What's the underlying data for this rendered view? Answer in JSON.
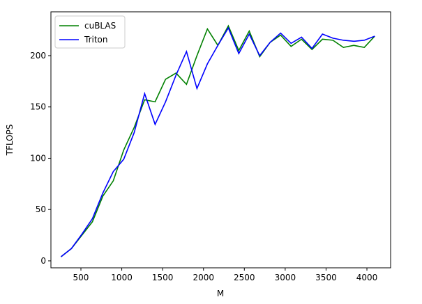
{
  "chart_data": {
    "type": "line",
    "x_label": "M",
    "y_label": "TFLOPS",
    "x": [
      256,
      384,
      512,
      640,
      768,
      896,
      1024,
      1152,
      1280,
      1408,
      1536,
      1664,
      1792,
      1920,
      2048,
      2176,
      2304,
      2432,
      2560,
      2688,
      2816,
      2944,
      3072,
      3200,
      3328,
      3456,
      3584,
      3712,
      3840,
      3968,
      4096
    ],
    "series": [
      {
        "name": "cuBLAS",
        "color": "#008000",
        "values": [
          4,
          12,
          25,
          38,
          63,
          78,
          108,
          130,
          157,
          155,
          177,
          183,
          172,
          200,
          226,
          210,
          229,
          205,
          224,
          199,
          213,
          220,
          209,
          216,
          206,
          216,
          215,
          208,
          210,
          208,
          219
        ]
      },
      {
        "name": "Triton",
        "color": "#0000ff",
        "values": [
          4,
          12,
          26,
          41,
          66,
          87,
          99,
          125,
          163,
          133,
          155,
          181,
          204,
          168,
          192,
          210,
          227,
          202,
          221,
          200,
          213,
          222,
          212,
          218,
          207,
          221,
          217,
          215,
          214,
          215,
          219
        ]
      }
    ],
    "xlim": [
      133,
      4290
    ],
    "ylim": [
      -6.8,
      242.7
    ],
    "xticks": [
      500,
      1000,
      1500,
      2000,
      2500,
      3000,
      3500,
      4000
    ],
    "yticks": [
      0,
      50,
      100,
      150,
      200
    ],
    "legend": "upper left"
  }
}
